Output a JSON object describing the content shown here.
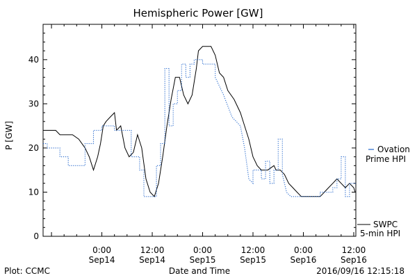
{
  "chart_data": {
    "type": "line",
    "title": "Hemispheric Power [GW]",
    "xlabel": "Date and Time",
    "ylabel": "P [GW]",
    "xlim": [
      "2016-09-13 10:00",
      "2016-09-16 12:30"
    ],
    "ylim": [
      0,
      48
    ],
    "yticks": [
      0,
      10,
      20,
      30,
      40
    ],
    "xticks": [
      {
        "t": "2016-09-14 00:00",
        "line1": "0:00",
        "line2": "Sep14"
      },
      {
        "t": "2016-09-14 12:00",
        "line1": "12:00",
        "line2": "Sep14"
      },
      {
        "t": "2016-09-15 00:00",
        "line1": "0:00",
        "line2": "Sep15"
      },
      {
        "t": "2016-09-15 12:00",
        "line1": "12:00",
        "line2": "Sep15"
      },
      {
        "t": "2016-09-16 00:00",
        "line1": "0:00",
        "line2": "Sep16"
      },
      {
        "t": "2016-09-16 12:00",
        "line1": "12:00",
        "line2": "Sep16"
      }
    ],
    "series": [
      {
        "name": "SWPC 5-min HPI",
        "color": "#000000",
        "style": "solid",
        "points": [
          [
            "2016-09-13 10:00",
            24
          ],
          [
            "2016-09-13 13:00",
            24
          ],
          [
            "2016-09-13 14:00",
            23
          ],
          [
            "2016-09-13 17:00",
            23
          ],
          [
            "2016-09-13 18:30",
            22
          ],
          [
            "2016-09-13 20:00",
            20
          ],
          [
            "2016-09-13 21:00",
            18
          ],
          [
            "2016-09-13 22:00",
            15
          ],
          [
            "2016-09-13 23:00",
            18
          ],
          [
            "2016-09-13 23:40",
            21
          ],
          [
            "2016-09-14 00:00",
            23
          ],
          [
            "2016-09-14 00:20",
            25
          ],
          [
            "2016-09-14 01:00",
            26
          ],
          [
            "2016-09-14 02:00",
            27
          ],
          [
            "2016-09-14 03:00",
            28
          ],
          [
            "2016-09-14 03:30",
            24
          ],
          [
            "2016-09-14 04:30",
            25
          ],
          [
            "2016-09-14 05:30",
            20
          ],
          [
            "2016-09-14 06:30",
            18
          ],
          [
            "2016-09-14 07:30",
            19
          ],
          [
            "2016-09-14 08:30",
            23
          ],
          [
            "2016-09-14 09:30",
            20
          ],
          [
            "2016-09-14 10:30",
            13
          ],
          [
            "2016-09-14 11:30",
            10
          ],
          [
            "2016-09-14 12:30",
            9
          ],
          [
            "2016-09-14 13:30",
            12
          ],
          [
            "2016-09-14 14:30",
            18
          ],
          [
            "2016-09-14 15:30",
            25
          ],
          [
            "2016-09-14 16:30",
            31
          ],
          [
            "2016-09-14 17:30",
            36
          ],
          [
            "2016-09-14 18:30",
            36
          ],
          [
            "2016-09-14 19:30",
            32
          ],
          [
            "2016-09-14 20:30",
            30
          ],
          [
            "2016-09-14 21:30",
            32
          ],
          [
            "2016-09-14 22:30",
            38
          ],
          [
            "2016-09-14 23:00",
            42
          ],
          [
            "2016-09-15 00:00",
            43
          ],
          [
            "2016-09-15 02:00",
            43
          ],
          [
            "2016-09-15 03:00",
            41
          ],
          [
            "2016-09-15 04:00",
            37
          ],
          [
            "2016-09-15 05:00",
            36
          ],
          [
            "2016-09-15 06:00",
            33
          ],
          [
            "2016-09-15 07:30",
            31
          ],
          [
            "2016-09-15 09:00",
            28
          ],
          [
            "2016-09-15 10:00",
            25
          ],
          [
            "2016-09-15 11:00",
            22
          ],
          [
            "2016-09-15 12:00",
            18
          ],
          [
            "2016-09-15 13:00",
            16
          ],
          [
            "2016-09-15 14:00",
            15
          ],
          [
            "2016-09-15 15:30",
            15
          ],
          [
            "2016-09-15 17:00",
            16
          ],
          [
            "2016-09-15 17:30",
            15
          ],
          [
            "2016-09-15 18:30",
            15
          ],
          [
            "2016-09-15 19:30",
            14
          ],
          [
            "2016-09-15 20:30",
            12
          ],
          [
            "2016-09-15 21:30",
            11
          ],
          [
            "2016-09-15 22:30",
            10
          ],
          [
            "2016-09-15 23:30",
            9
          ],
          [
            "2016-09-16 01:00",
            9
          ],
          [
            "2016-09-16 04:00",
            9
          ],
          [
            "2016-09-16 05:00",
            10
          ],
          [
            "2016-09-16 06:00",
            11
          ],
          [
            "2016-09-16 07:00",
            12
          ],
          [
            "2016-09-16 08:00",
            13
          ],
          [
            "2016-09-16 09:00",
            12
          ],
          [
            "2016-09-16 10:00",
            11
          ],
          [
            "2016-09-16 11:00",
            12
          ],
          [
            "2016-09-16 12:00",
            11
          ],
          [
            "2016-09-16 12:20",
            10
          ]
        ]
      },
      {
        "name": "Ovation Prime HPI",
        "color": "#2266cc",
        "style": "dotted",
        "points": [
          [
            "2016-09-13 10:00",
            21
          ],
          [
            "2016-09-13 11:00",
            21
          ],
          [
            "2016-09-13 11:00",
            20
          ],
          [
            "2016-09-13 14:00",
            20
          ],
          [
            "2016-09-13 14:00",
            18
          ],
          [
            "2016-09-13 16:00",
            18
          ],
          [
            "2016-09-13 16:00",
            16
          ],
          [
            "2016-09-13 20:00",
            16
          ],
          [
            "2016-09-13 20:00",
            21
          ],
          [
            "2016-09-13 22:00",
            21
          ],
          [
            "2016-09-13 22:00",
            24
          ],
          [
            "2016-09-14 00:00",
            24
          ],
          [
            "2016-09-14 00:00",
            25
          ],
          [
            "2016-09-14 03:00",
            25
          ],
          [
            "2016-09-14 03:00",
            24
          ],
          [
            "2016-09-14 07:00",
            24
          ],
          [
            "2016-09-14 07:00",
            18
          ],
          [
            "2016-09-14 09:00",
            18
          ],
          [
            "2016-09-14 09:00",
            15
          ],
          [
            "2016-09-14 10:00",
            15
          ],
          [
            "2016-09-14 10:00",
            9
          ],
          [
            "2016-09-14 13:00",
            9
          ],
          [
            "2016-09-14 13:00",
            16
          ],
          [
            "2016-09-14 14:00",
            16
          ],
          [
            "2016-09-14 14:00",
            21
          ],
          [
            "2016-09-14 15:00",
            21
          ],
          [
            "2016-09-14 15:00",
            38
          ],
          [
            "2016-09-14 16:00",
            38
          ],
          [
            "2016-09-14 16:00",
            25
          ],
          [
            "2016-09-14 17:00",
            25
          ],
          [
            "2016-09-14 17:00",
            30
          ],
          [
            "2016-09-14 18:00",
            30
          ],
          [
            "2016-09-14 18:00",
            33
          ],
          [
            "2016-09-14 19:00",
            33
          ],
          [
            "2016-09-14 19:00",
            39
          ],
          [
            "2016-09-14 20:00",
            39
          ],
          [
            "2016-09-14 20:00",
            36
          ],
          [
            "2016-09-14 21:00",
            36
          ],
          [
            "2016-09-14 21:00",
            39
          ],
          [
            "2016-09-14 22:00",
            39
          ],
          [
            "2016-09-14 22:00",
            40
          ],
          [
            "2016-09-15 00:00",
            40
          ],
          [
            "2016-09-15 00:00",
            39
          ],
          [
            "2016-09-15 03:00",
            39
          ],
          [
            "2016-09-15 03:00",
            36
          ],
          [
            "2016-09-15 05:00",
            32
          ],
          [
            "2016-09-15 07:00",
            27
          ],
          [
            "2016-09-15 09:00",
            25
          ],
          [
            "2016-09-15 10:00",
            20
          ],
          [
            "2016-09-15 11:00",
            13
          ],
          [
            "2016-09-15 12:00",
            12
          ],
          [
            "2016-09-15 12:00",
            15
          ],
          [
            "2016-09-15 14:00",
            15
          ],
          [
            "2016-09-15 14:00",
            13
          ],
          [
            "2016-09-15 15:00",
            13
          ],
          [
            "2016-09-15 15:00",
            17
          ],
          [
            "2016-09-15 16:00",
            17
          ],
          [
            "2016-09-15 16:00",
            12
          ],
          [
            "2016-09-15 17:00",
            12
          ],
          [
            "2016-09-15 17:00",
            15
          ],
          [
            "2016-09-15 18:00",
            15
          ],
          [
            "2016-09-15 18:00",
            22
          ],
          [
            "2016-09-15 19:00",
            22
          ],
          [
            "2016-09-15 19:00",
            14
          ],
          [
            "2016-09-15 20:00",
            10
          ],
          [
            "2016-09-15 21:00",
            9
          ],
          [
            "2016-09-16 04:00",
            9
          ],
          [
            "2016-09-16 04:00",
            10
          ],
          [
            "2016-09-16 07:00",
            10
          ],
          [
            "2016-09-16 07:00",
            11
          ],
          [
            "2016-09-16 08:00",
            11
          ],
          [
            "2016-09-16 08:00",
            13
          ],
          [
            "2016-09-16 09:00",
            13
          ],
          [
            "2016-09-16 09:00",
            18
          ],
          [
            "2016-09-16 10:00",
            18
          ],
          [
            "2016-09-16 10:00",
            9
          ],
          [
            "2016-09-16 11:00",
            9
          ],
          [
            "2016-09-16 11:00",
            12
          ],
          [
            "2016-09-16 12:30",
            12
          ]
        ]
      }
    ],
    "legend_placement": "right"
  },
  "legend": {
    "ovation_line1": "Ovation",
    "ovation_line2": "Prime HPI",
    "swpc_line1": "SWPC",
    "swpc_line2": "5-min HPI"
  },
  "footer": {
    "plot_credit": "Plot: CCMC",
    "timestamp": "2016/09/16 12:15:18"
  }
}
